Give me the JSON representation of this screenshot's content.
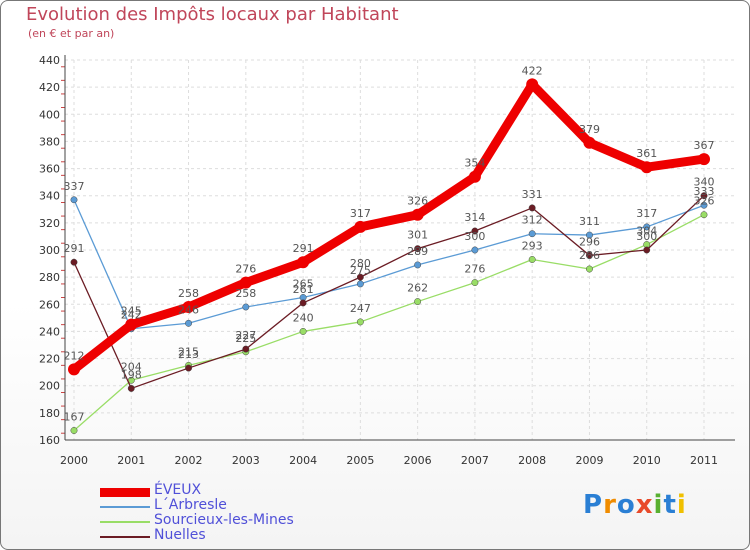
{
  "title": "Evolution des Impôts locaux par Habitant",
  "subtitle": "(en € et par an)",
  "brand": "Proxiti",
  "chart_data": {
    "type": "line",
    "title": "Evolution des Impôts locaux par Habitant",
    "ylabel": "(en € et par an)",
    "categories": [
      "2000",
      "2001",
      "2002",
      "2003",
      "2004",
      "2005",
      "2006",
      "2007",
      "2008",
      "2009",
      "2010",
      "2011"
    ],
    "y_ticks": [
      "160",
      "180",
      "200",
      "220",
      "240",
      "260",
      "280",
      "300",
      "320",
      "340",
      "360",
      "380",
      "400",
      "420",
      "440"
    ],
    "ylim": [
      160,
      440
    ],
    "grid": true,
    "legend": "bottom-left",
    "series": [
      {
        "name": "ÉVEUX",
        "color": "#ee0000",
        "values": [
          212,
          245,
          258,
          276,
          291,
          317,
          326,
          354,
          422,
          379,
          361,
          367
        ]
      },
      {
        "name": "L´Arbresle",
        "color": "#5b9bd5",
        "values": [
          337,
          242,
          246,
          258,
          265,
          275,
          289,
          300,
          312,
          311,
          317,
          333
        ]
      },
      {
        "name": "Sourcieux-les-Mines",
        "color": "#99dd66",
        "values": [
          167,
          204,
          215,
          225,
          240,
          247,
          262,
          276,
          293,
          286,
          304,
          326
        ]
      },
      {
        "name": "Nuelles",
        "color": "#6b1c24",
        "values": [
          291,
          198,
          213,
          227,
          261,
          280,
          301,
          314,
          331,
          296,
          300,
          340
        ]
      }
    ]
  }
}
